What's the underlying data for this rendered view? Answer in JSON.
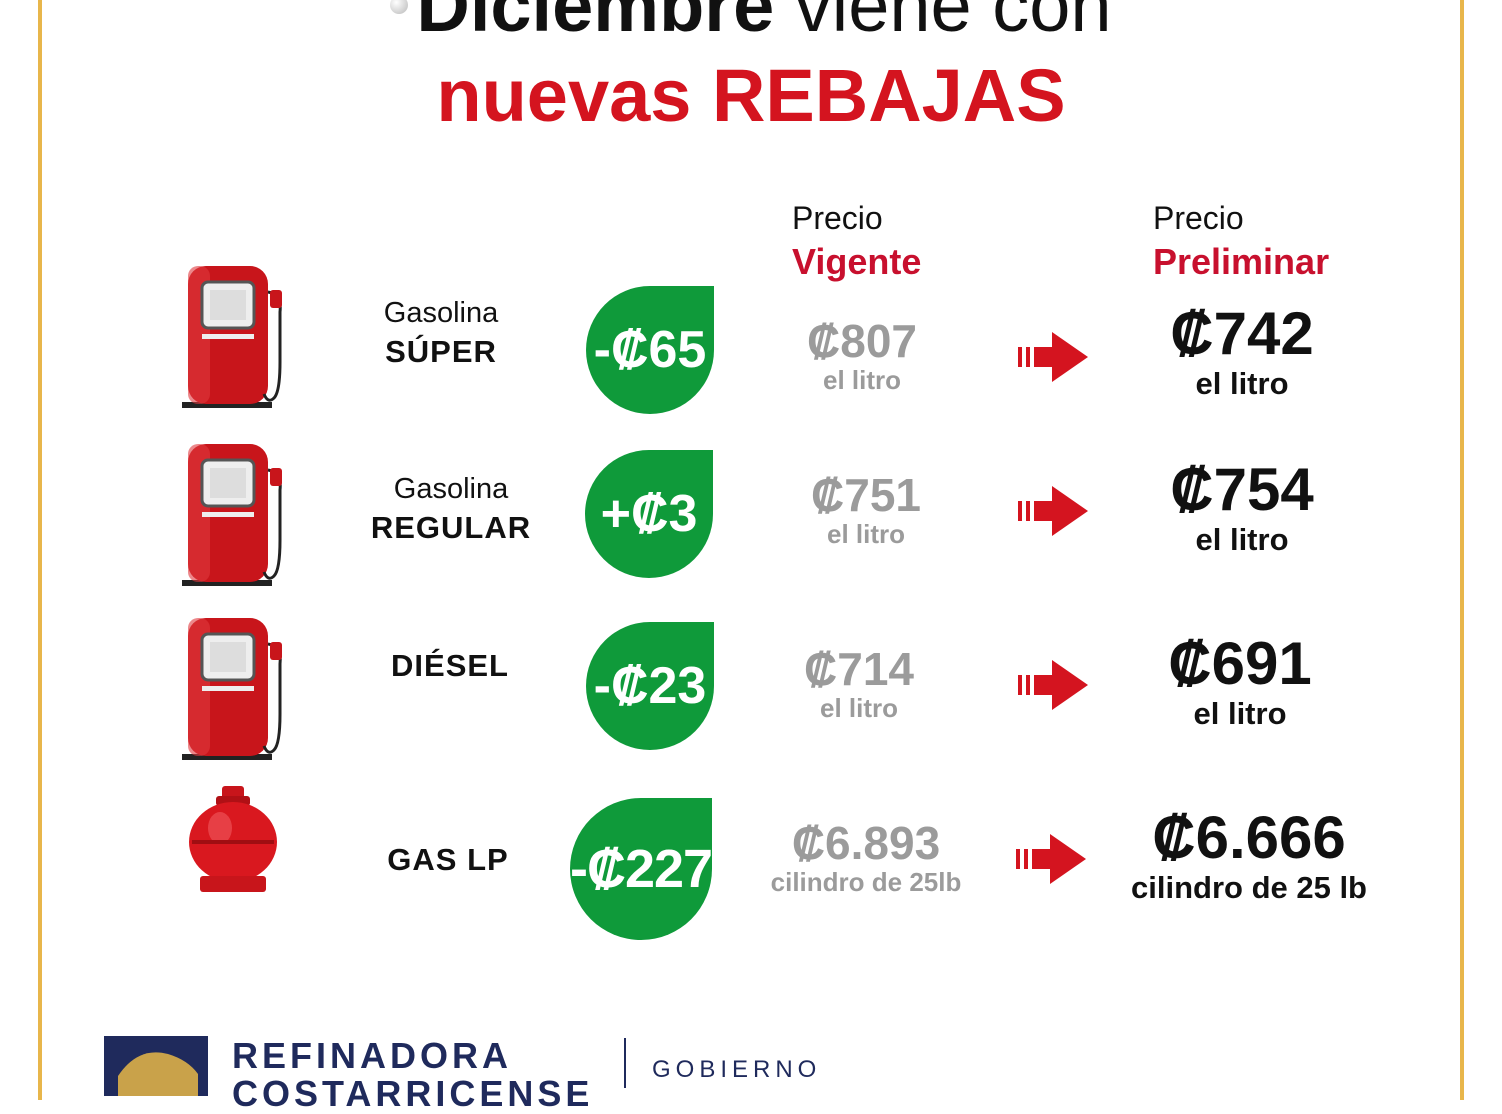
{
  "title": {
    "line1_bold": "Diciembre",
    "line1_rest": " viene con",
    "line2": "nuevas REBAJAS"
  },
  "headers": {
    "current": {
      "top": "Precio",
      "bottom": "Vigente"
    },
    "preliminary": {
      "top": "Precio",
      "bottom": "Preliminar"
    }
  },
  "products": [
    {
      "line1": "Gasolina",
      "line2": "SÚPER",
      "change": "-₡65",
      "current_price": "₡807",
      "current_unit": "el litro",
      "new_price": "₡742",
      "new_unit": "el litro",
      "icon": "fuel-pump-icon"
    },
    {
      "line1": "Gasolina",
      "line2": "REGULAR",
      "change": "+₡3",
      "current_price": "₡751",
      "current_unit": "el litro",
      "new_price": "₡754",
      "new_unit": "el litro",
      "icon": "fuel-pump-icon"
    },
    {
      "line1": "",
      "line2": "DIÉSEL",
      "change": "-₡23",
      "current_price": "₡714",
      "current_unit": "el litro",
      "new_price": "₡691",
      "new_unit": "el litro",
      "icon": "fuel-pump-icon"
    },
    {
      "line1": "",
      "line2": "GAS LP",
      "change": "-₡227",
      "current_price": "₡6.893",
      "current_unit": "cilindro de 25lb",
      "new_price": "₡6.666",
      "new_unit": "cilindro de 25 lb",
      "icon": "gas-cylinder-icon"
    }
  ],
  "footer": {
    "org_line1": "REFINADORA",
    "org_line2": "COSTARRICENSE",
    "gov": "GOBIERNO"
  },
  "colors": {
    "green": "#0f9a3a",
    "red": "#d4141f",
    "border": "#e8b64b",
    "navy": "#1f2a5c"
  }
}
